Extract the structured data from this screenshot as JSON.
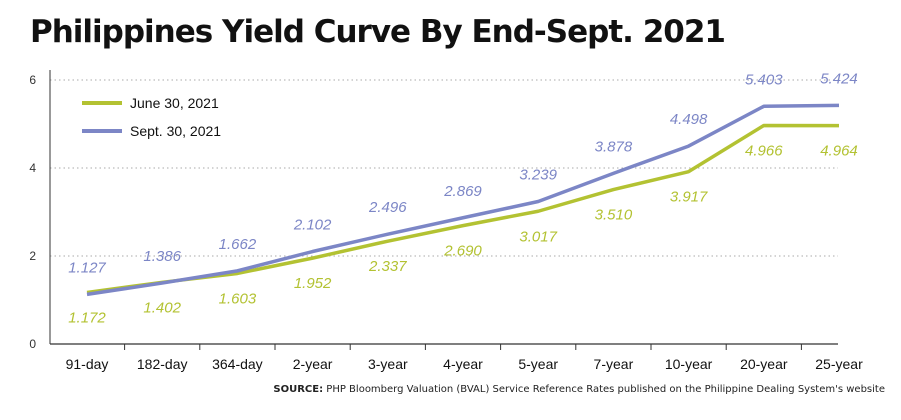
{
  "title": "Philippines Yield Curve By End-Sept. 2021",
  "source": {
    "label": "SOURCE:",
    "text": "PHP Bloomberg Valuation (BVAL) Service Reference Rates published on the Philippine Dealing System's website"
  },
  "colors": {
    "june": "#b3c232",
    "sept": "#7c86c6",
    "grid": "#aaaaaa",
    "axis": "#333333"
  },
  "chart_data": {
    "type": "line",
    "title": "Philippines Yield Curve By End-Sept. 2021",
    "xlabel": "",
    "ylabel": "",
    "categories": [
      "91-day",
      "182-day",
      "364-day",
      "2-year",
      "3-year",
      "4-year",
      "5-year",
      "7-year",
      "10-year",
      "20-year",
      "25-year"
    ],
    "ylim": [
      0,
      6
    ],
    "yticks": [
      0,
      2,
      4,
      6
    ],
    "grid": true,
    "legend": "top-left",
    "series": [
      {
        "name": "June 30, 2021",
        "values": [
          1.172,
          1.402,
          1.603,
          1.952,
          2.337,
          2.69,
          3.017,
          3.51,
          3.917,
          4.966,
          4.964
        ],
        "labels": [
          "1.172",
          "1.402",
          "1.603",
          "1.952",
          "2.337",
          "2.690",
          "3.017",
          "3.510",
          "3.917",
          "4.966",
          "4.964"
        ]
      },
      {
        "name": "Sept. 30, 2021",
        "values": [
          1.127,
          1.386,
          1.662,
          2.102,
          2.496,
          2.869,
          3.239,
          3.878,
          4.498,
          5.403,
          5.424
        ],
        "labels": [
          "1.127",
          "1.386",
          "1.662",
          "2.102",
          "2.496",
          "2.869",
          "3.239",
          "3.878",
          "4.498",
          "5.403",
          "5.424"
        ]
      }
    ]
  }
}
